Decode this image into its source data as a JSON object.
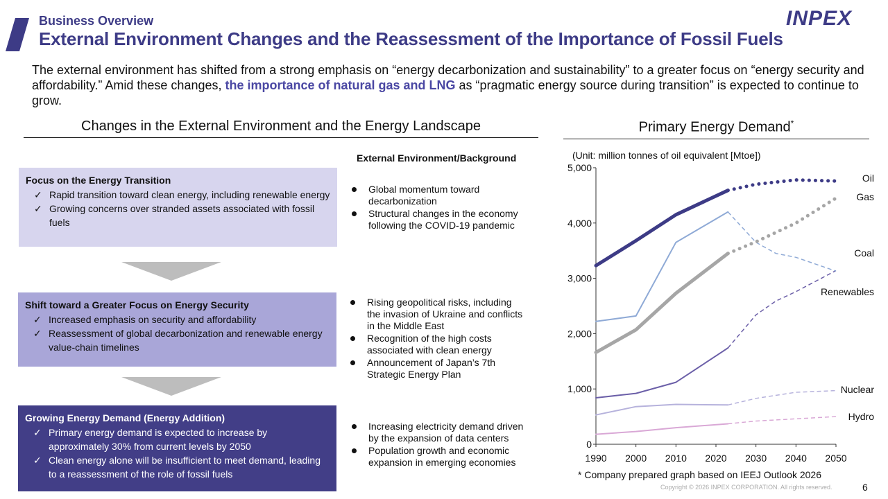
{
  "header": {
    "section": "Business Overview",
    "title": "External Environment Changes and the Reassessment of the Importance of Fossil Fuels",
    "logo": "INPEX"
  },
  "intro": {
    "part1": "The external environment has shifted from a strong emphasis on “energy decarbonization and sustainability” to a greater focus on “energy security and affordability.” Amid these changes, ",
    "highlight": "the importance of natural gas and LNG",
    "part2": " as “pragmatic energy source during transition” is expected to continue to grow."
  },
  "left": {
    "heading": "Changes in the External Environment and the Energy Landscape",
    "background_heading": "External Environment/Background",
    "check": "✓",
    "stages": [
      {
        "title": "Focus on the Energy Transition",
        "points": [
          "Rapid transition toward clean energy, including renewable energy",
          "Growing concerns over stranded assets associated with fossil fuels"
        ],
        "background": [
          "Global momentum toward decarbonization",
          "Structural changes in the economy following the COVID-19 pandemic"
        ]
      },
      {
        "title": "Shift toward a Greater Focus on Energy Security",
        "points": [
          "Increased emphasis on security and affordability",
          "Reassessment of global decarbonization and renewable energy value-chain timelines"
        ],
        "background": [
          "Rising geopolitical risks, including the invasion of Ukraine and conflicts in the Middle East",
          "Recognition of the high costs associated with clean energy",
          "Announcement of Japan’s 7th Strategic Energy Plan"
        ]
      },
      {
        "title": "Growing Energy Demand (Energy Addition)",
        "points": [
          "Primary energy demand is expected to increase by approximately 30% from current levels by 2050",
          "Clean energy alone will be insufficient to meet demand, leading to a reassessment of the role of fossil fuels"
        ],
        "background": [
          "Increasing electricity demand driven by the expansion of data centers",
          "Population growth and economic expansion in emerging economies"
        ]
      }
    ]
  },
  "right": {
    "heading": "Primary Energy Demand",
    "heading_mark": "*",
    "footnote": "* Company prepared graph based on IEEJ Outlook 2026"
  },
  "chart_data": {
    "type": "line",
    "title": "Primary Energy Demand",
    "unit_label": "(Unit: million tonnes of oil equivalent [Mtoe])",
    "ylim": [
      0,
      5000
    ],
    "yticks": [
      0,
      1000,
      2000,
      3000,
      4000,
      5000
    ],
    "ytick_labels": [
      "0",
      "1,000",
      "2,000",
      "3,000",
      "4,000",
      "5,000"
    ],
    "xlim": [
      1990,
      2050
    ],
    "xticks": [
      1990,
      2000,
      2010,
      2020,
      2030,
      2040,
      2050
    ],
    "xtick_labels": [
      "1990",
      "2000",
      "2010",
      "2020",
      "2030",
      "2040",
      "2050"
    ],
    "historical_end": 2023,
    "series": [
      {
        "name": "Oil",
        "color": "#3d3b86",
        "style": "dotted-thick",
        "actual": [
          [
            1990,
            3230
          ],
          [
            2000,
            3680
          ],
          [
            2010,
            4150
          ],
          [
            2023,
            4590
          ]
        ],
        "forecast": [
          [
            2023,
            4590
          ],
          [
            2030,
            4700
          ],
          [
            2040,
            4780
          ],
          [
            2050,
            4760
          ]
        ]
      },
      {
        "name": "Gas",
        "color": "#a6a6a6",
        "style": "dotted-thick",
        "actual": [
          [
            1990,
            1660
          ],
          [
            2000,
            2070
          ],
          [
            2010,
            2730
          ],
          [
            2023,
            3450
          ]
        ],
        "forecast": [
          [
            2023,
            3450
          ],
          [
            2030,
            3660
          ],
          [
            2040,
            4000
          ],
          [
            2050,
            4450
          ]
        ]
      },
      {
        "name": "Coal",
        "color": "#8faad6",
        "style": "dashed",
        "actual": [
          [
            1990,
            2220
          ],
          [
            2000,
            2320
          ],
          [
            2010,
            3650
          ],
          [
            2023,
            4200
          ]
        ],
        "forecast": [
          [
            2023,
            4200
          ],
          [
            2030,
            3650
          ],
          [
            2035,
            3450
          ],
          [
            2040,
            3380
          ],
          [
            2050,
            3130
          ]
        ]
      },
      {
        "name": "Renewables",
        "color": "#6b5fa8",
        "style": "dashed",
        "actual": [
          [
            1990,
            840
          ],
          [
            2000,
            920
          ],
          [
            2010,
            1120
          ],
          [
            2023,
            1740
          ]
        ],
        "forecast": [
          [
            2023,
            1740
          ],
          [
            2030,
            2340
          ],
          [
            2035,
            2590
          ],
          [
            2040,
            2760
          ],
          [
            2050,
            3140
          ]
        ]
      },
      {
        "name": "Nuclear",
        "color": "#b6b2dc",
        "style": "dashed",
        "actual": [
          [
            1990,
            530
          ],
          [
            2000,
            680
          ],
          [
            2010,
            720
          ],
          [
            2023,
            710
          ]
        ],
        "forecast": [
          [
            2023,
            710
          ],
          [
            2030,
            830
          ],
          [
            2040,
            940
          ],
          [
            2050,
            970
          ]
        ]
      },
      {
        "name": "Hydro",
        "color": "#d9a8d6",
        "style": "dashed",
        "actual": [
          [
            1990,
            180
          ],
          [
            2000,
            230
          ],
          [
            2010,
            300
          ],
          [
            2023,
            370
          ]
        ],
        "forecast": [
          [
            2023,
            370
          ],
          [
            2030,
            420
          ],
          [
            2040,
            460
          ],
          [
            2050,
            500
          ]
        ]
      }
    ]
  },
  "footer": {
    "copyright": "Copyright © 2026 INPEX CORPORATION. All rights reserved.",
    "page": "6"
  }
}
